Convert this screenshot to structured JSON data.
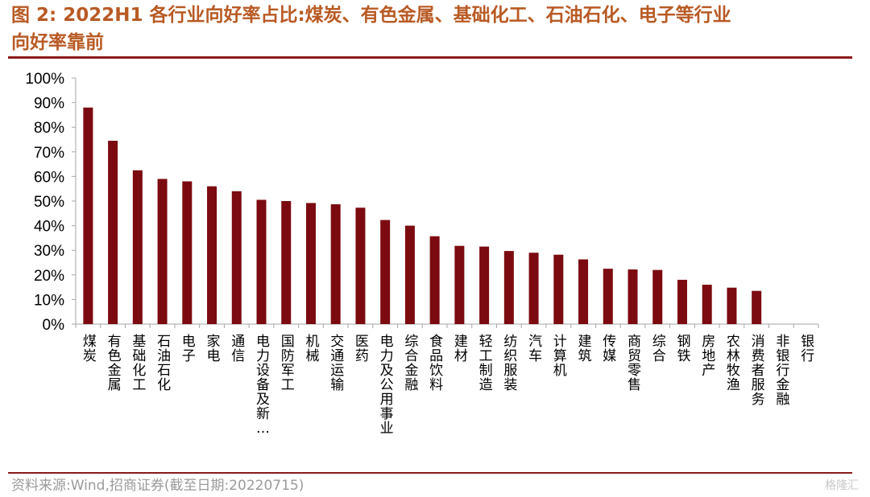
{
  "header": {
    "title_line1": "图 2:  2022H1 各行业向好率占比:煤炭、有色金属、基础化工、石油石化、电子等行业",
    "title_line2": "向好率靠前"
  },
  "footer": {
    "source": "资料来源:Wind,招商证券(截至日期:20220715)",
    "watermark": "格隆汇"
  },
  "colors": {
    "bar": "#7b0b10",
    "title": "#b85a24",
    "rule": "#8b1a1a"
  },
  "chart_data": {
    "type": "bar",
    "categories": [
      "煤炭",
      "有色金属",
      "基础化工",
      "石油石化",
      "电子",
      "家电",
      "通信",
      "电力设备及新…",
      "国防军工",
      "机械",
      "交通运输",
      "医药",
      "电力及公用事业",
      "综合金融",
      "食品饮料",
      "建材",
      "轻工制造",
      "纺织服装",
      "汽车",
      "计算机",
      "建筑",
      "传媒",
      "商贸零售",
      "综合",
      "钢铁",
      "房地产",
      "农林牧渔",
      "消费者服务",
      "非银行金融",
      "银行"
    ],
    "values": [
      0.88,
      0.745,
      0.625,
      0.59,
      0.58,
      0.56,
      0.54,
      0.505,
      0.5,
      0.492,
      0.487,
      0.473,
      0.423,
      0.4,
      0.357,
      0.318,
      0.315,
      0.297,
      0.29,
      0.282,
      0.263,
      0.225,
      0.222,
      0.22,
      0.18,
      0.16,
      0.148,
      0.135,
      0,
      0
    ],
    "yticks": [
      "0%",
      "10%",
      "20%",
      "30%",
      "40%",
      "50%",
      "60%",
      "70%",
      "80%",
      "90%",
      "100%"
    ],
    "ylim": [
      0,
      1
    ],
    "title": "",
    "xlabel": "",
    "ylabel": ""
  }
}
